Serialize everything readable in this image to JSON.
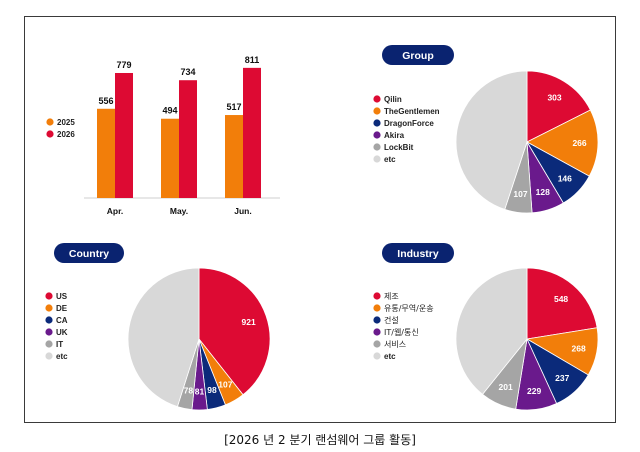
{
  "caption": "[2026 년 2 분기 랜섬웨어 그룹 활동]",
  "colors": {
    "red": "#dd0a33",
    "orange": "#f27e0a",
    "navy": "#0b2a7a",
    "purple": "#6a1a8c",
    "gray": "#a5a5a5",
    "lightgray": "#d8d8d8",
    "pill": "#0a2370"
  },
  "chart_data": [
    {
      "type": "bar",
      "categories": [
        "Apr.",
        "May.",
        "Jun."
      ],
      "series": [
        {
          "name": "2025",
          "color": "#f27e0a",
          "values": [
            556,
            494,
            517
          ]
        },
        {
          "name": "2026",
          "color": "#dd0a33",
          "values": [
            779,
            734,
            811
          ]
        }
      ],
      "ylim": [
        0,
        860
      ],
      "legend": "left"
    },
    {
      "type": "pie",
      "title": "Group",
      "labels": [
        "Qilin",
        "TheGentlemen",
        "DragonForce",
        "Akira",
        "LockBit",
        "etc"
      ],
      "values": [
        303,
        266,
        146,
        128,
        107,
        775
      ],
      "shown_labels": [
        "303",
        "266",
        "146",
        "128",
        "107",
        ""
      ],
      "colors": [
        "#dd0a33",
        "#f27e0a",
        "#0b2a7a",
        "#6a1a8c",
        "#a5a5a5",
        "#d8d8d8"
      ],
      "legend": "left"
    },
    {
      "type": "pie",
      "title": "Country",
      "labels": [
        "US",
        "DE",
        "CA",
        "UK",
        "IT",
        "etc"
      ],
      "values": [
        921,
        107,
        98,
        81,
        78,
        1055
      ],
      "shown_labels": [
        "921",
        "107",
        "98",
        "81",
        "78",
        ""
      ],
      "colors": [
        "#dd0a33",
        "#f27e0a",
        "#0b2a7a",
        "#6a1a8c",
        "#a5a5a5",
        "#d8d8d8"
      ],
      "legend": "left"
    },
    {
      "type": "pie",
      "title": "Industry",
      "labels": [
        "제조",
        "유통/무역/운송",
        "건설",
        "IT/웹/통신",
        "서비스",
        "etc"
      ],
      "values": [
        548,
        268,
        237,
        229,
        201,
        957
      ],
      "shown_labels": [
        "548",
        "268",
        "237",
        "229",
        "201",
        ""
      ],
      "colors": [
        "#dd0a33",
        "#f27e0a",
        "#0b2a7a",
        "#6a1a8c",
        "#a5a5a5",
        "#d8d8d8"
      ],
      "legend": "left"
    }
  ]
}
